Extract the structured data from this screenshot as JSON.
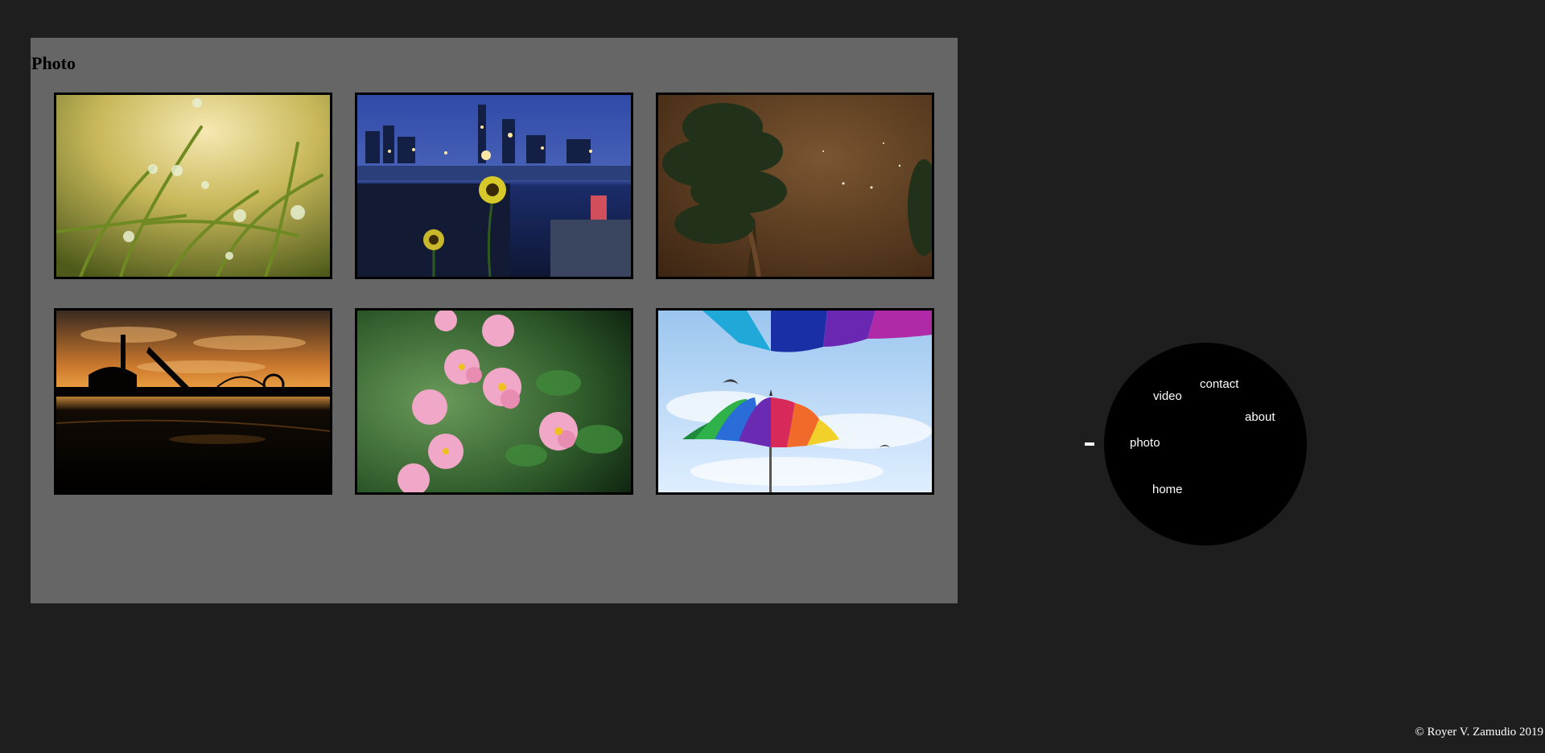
{
  "gallery": {
    "title": "Photo",
    "photos": [
      {
        "subject": "dew-drops-on-grass"
      },
      {
        "subject": "city-skyline-with-sunflowers"
      },
      {
        "subject": "tree-under-night-sky"
      },
      {
        "subject": "amusement-park-silhouette-sunset"
      },
      {
        "subject": "pink-flowers"
      },
      {
        "subject": "rainbow-umbrella-with-birds"
      }
    ]
  },
  "menu": {
    "links": {
      "contact": "contact",
      "video": "video",
      "about": "about",
      "photo": "photo",
      "home": "home"
    }
  },
  "footer": {
    "copyright": "© Royer V. Zamudio 2019"
  },
  "colors": {
    "page_background": "#1e1e1e",
    "panel_background": "#666666",
    "menu_circle": "#000000",
    "menu_text": "#ffffff"
  }
}
